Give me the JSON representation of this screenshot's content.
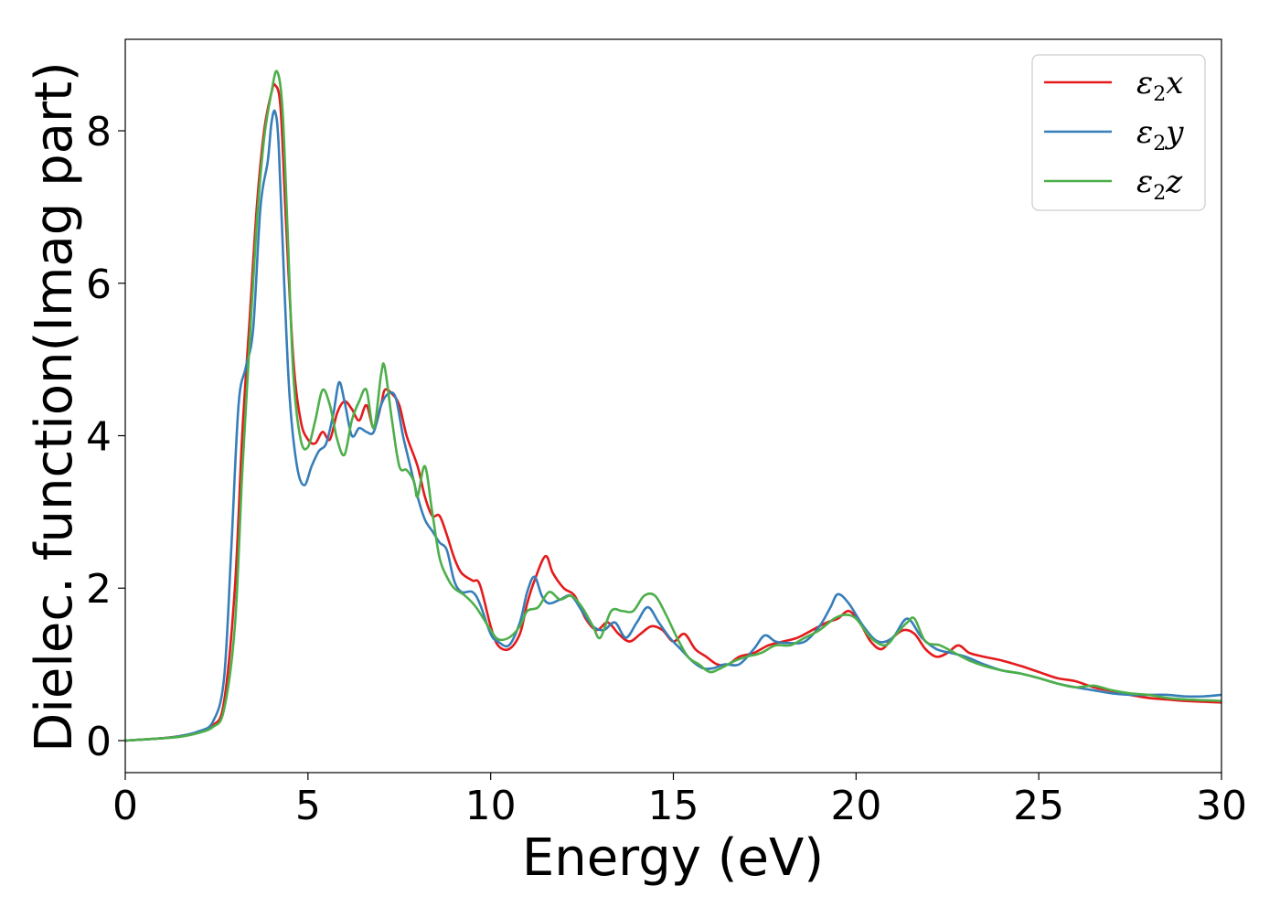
{
  "chart_data": {
    "type": "line",
    "title": "",
    "xlabel": "Energy (eV)",
    "ylabel": "Dielec. function(Imag part)",
    "xlim": [
      0,
      30
    ],
    "ylim": [
      -0.42,
      9.2
    ],
    "xticks": [
      0,
      5,
      10,
      15,
      20,
      25,
      30
    ],
    "yticks": [
      0,
      2,
      4,
      6,
      8
    ],
    "grid": false,
    "legend_position": "top-right",
    "series": [
      {
        "name": "ε2x",
        "legend": {
          "base": "ε",
          "sub": "2",
          "var": "x"
        },
        "color": "#e41a1c",
        "points": [
          [
            0,
            0
          ],
          [
            1,
            0.03
          ],
          [
            1.5,
            0.06
          ],
          [
            2,
            0.11
          ],
          [
            2.4,
            0.2
          ],
          [
            2.7,
            0.5
          ],
          [
            3.0,
            2.0
          ],
          [
            3.2,
            4.0
          ],
          [
            3.4,
            5.5
          ],
          [
            3.6,
            7.0
          ],
          [
            3.8,
            8.0
          ],
          [
            4.0,
            8.5
          ],
          [
            4.1,
            8.6
          ],
          [
            4.25,
            8.3
          ],
          [
            4.4,
            6.8
          ],
          [
            4.6,
            5.0
          ],
          [
            4.8,
            4.2
          ],
          [
            5.0,
            3.95
          ],
          [
            5.2,
            3.9
          ],
          [
            5.4,
            4.05
          ],
          [
            5.6,
            3.95
          ],
          [
            5.8,
            4.3
          ],
          [
            6.0,
            4.45
          ],
          [
            6.2,
            4.35
          ],
          [
            6.4,
            4.2
          ],
          [
            6.6,
            4.4
          ],
          [
            6.8,
            4.1
          ],
          [
            7.0,
            4.4
          ],
          [
            7.1,
            4.6
          ],
          [
            7.3,
            4.55
          ],
          [
            7.5,
            4.4
          ],
          [
            7.7,
            4.0
          ],
          [
            8.0,
            3.6
          ],
          [
            8.2,
            3.2
          ],
          [
            8.4,
            2.95
          ],
          [
            8.6,
            2.95
          ],
          [
            8.8,
            2.7
          ],
          [
            9.0,
            2.4
          ],
          [
            9.2,
            2.2
          ],
          [
            9.5,
            2.1
          ],
          [
            9.7,
            2.05
          ],
          [
            10.0,
            1.5
          ],
          [
            10.2,
            1.25
          ],
          [
            10.5,
            1.2
          ],
          [
            10.8,
            1.4
          ],
          [
            11.0,
            1.8
          ],
          [
            11.2,
            2.1
          ],
          [
            11.5,
            2.42
          ],
          [
            11.7,
            2.2
          ],
          [
            12.0,
            2.0
          ],
          [
            12.3,
            1.9
          ],
          [
            12.6,
            1.6
          ],
          [
            12.9,
            1.45
          ],
          [
            13.2,
            1.55
          ],
          [
            13.5,
            1.4
          ],
          [
            13.8,
            1.3
          ],
          [
            14.1,
            1.4
          ],
          [
            14.4,
            1.5
          ],
          [
            14.7,
            1.45
          ],
          [
            15.0,
            1.3
          ],
          [
            15.3,
            1.4
          ],
          [
            15.6,
            1.2
          ],
          [
            15.9,
            1.1
          ],
          [
            16.2,
            1.0
          ],
          [
            16.5,
            1.0
          ],
          [
            16.8,
            1.1
          ],
          [
            17.2,
            1.15
          ],
          [
            17.6,
            1.25
          ],
          [
            18.0,
            1.3
          ],
          [
            18.4,
            1.35
          ],
          [
            18.8,
            1.45
          ],
          [
            19.2,
            1.55
          ],
          [
            19.5,
            1.6
          ],
          [
            19.8,
            1.7
          ],
          [
            20.1,
            1.55
          ],
          [
            20.4,
            1.3
          ],
          [
            20.7,
            1.2
          ],
          [
            21.0,
            1.35
          ],
          [
            21.3,
            1.45
          ],
          [
            21.6,
            1.4
          ],
          [
            21.9,
            1.2
          ],
          [
            22.2,
            1.1
          ],
          [
            22.5,
            1.15
          ],
          [
            22.8,
            1.25
          ],
          [
            23.1,
            1.15
          ],
          [
            23.5,
            1.1
          ],
          [
            24.0,
            1.05
          ],
          [
            24.5,
            0.98
          ],
          [
            25.0,
            0.9
          ],
          [
            25.5,
            0.82
          ],
          [
            26.0,
            0.78
          ],
          [
            26.5,
            0.7
          ],
          [
            27.0,
            0.65
          ],
          [
            27.5,
            0.6
          ],
          [
            28.0,
            0.56
          ],
          [
            28.5,
            0.54
          ],
          [
            29.0,
            0.52
          ],
          [
            29.5,
            0.51
          ],
          [
            30.0,
            0.5
          ]
        ]
      },
      {
        "name": "ε2y",
        "legend": {
          "base": "ε",
          "sub": "2",
          "var": "y"
        },
        "color": "#377eb8",
        "points": [
          [
            0,
            0
          ],
          [
            1,
            0.03
          ],
          [
            1.5,
            0.06
          ],
          [
            2,
            0.12
          ],
          [
            2.4,
            0.25
          ],
          [
            2.7,
            0.8
          ],
          [
            2.9,
            2.5
          ],
          [
            3.1,
            4.4
          ],
          [
            3.3,
            4.9
          ],
          [
            3.5,
            5.4
          ],
          [
            3.7,
            7.0
          ],
          [
            3.9,
            7.6
          ],
          [
            4.0,
            8.1
          ],
          [
            4.1,
            8.25
          ],
          [
            4.2,
            7.8
          ],
          [
            4.35,
            6.0
          ],
          [
            4.5,
            4.5
          ],
          [
            4.7,
            3.6
          ],
          [
            4.9,
            3.35
          ],
          [
            5.1,
            3.6
          ],
          [
            5.3,
            3.8
          ],
          [
            5.5,
            3.9
          ],
          [
            5.7,
            4.3
          ],
          [
            5.85,
            4.7
          ],
          [
            6.0,
            4.45
          ],
          [
            6.2,
            4.0
          ],
          [
            6.4,
            4.1
          ],
          [
            6.6,
            4.05
          ],
          [
            6.8,
            4.05
          ],
          [
            7.0,
            4.4
          ],
          [
            7.2,
            4.55
          ],
          [
            7.4,
            4.5
          ],
          [
            7.6,
            4.0
          ],
          [
            7.8,
            3.6
          ],
          [
            8.0,
            3.2
          ],
          [
            8.2,
            2.9
          ],
          [
            8.4,
            2.75
          ],
          [
            8.6,
            2.6
          ],
          [
            8.8,
            2.5
          ],
          [
            9.0,
            2.1
          ],
          [
            9.2,
            1.95
          ],
          [
            9.5,
            1.95
          ],
          [
            9.7,
            1.8
          ],
          [
            10.0,
            1.4
          ],
          [
            10.2,
            1.3
          ],
          [
            10.5,
            1.25
          ],
          [
            10.8,
            1.55
          ],
          [
            11.0,
            1.95
          ],
          [
            11.2,
            2.15
          ],
          [
            11.4,
            1.9
          ],
          [
            11.6,
            1.8
          ],
          [
            11.9,
            1.85
          ],
          [
            12.2,
            1.9
          ],
          [
            12.5,
            1.7
          ],
          [
            12.8,
            1.5
          ],
          [
            13.1,
            1.45
          ],
          [
            13.4,
            1.55
          ],
          [
            13.7,
            1.35
          ],
          [
            14.0,
            1.55
          ],
          [
            14.3,
            1.75
          ],
          [
            14.6,
            1.55
          ],
          [
            14.9,
            1.35
          ],
          [
            15.2,
            1.2
          ],
          [
            15.5,
            1.05
          ],
          [
            15.8,
            0.95
          ],
          [
            16.1,
            0.95
          ],
          [
            16.4,
            1.0
          ],
          [
            16.8,
            1.0
          ],
          [
            17.2,
            1.2
          ],
          [
            17.5,
            1.38
          ],
          [
            17.8,
            1.3
          ],
          [
            18.2,
            1.28
          ],
          [
            18.6,
            1.3
          ],
          [
            19.0,
            1.5
          ],
          [
            19.3,
            1.75
          ],
          [
            19.5,
            1.92
          ],
          [
            19.8,
            1.8
          ],
          [
            20.2,
            1.5
          ],
          [
            20.6,
            1.3
          ],
          [
            21.0,
            1.35
          ],
          [
            21.4,
            1.6
          ],
          [
            21.8,
            1.35
          ],
          [
            22.2,
            1.2
          ],
          [
            22.6,
            1.15
          ],
          [
            23.0,
            1.1
          ],
          [
            23.5,
            1.0
          ],
          [
            24.0,
            0.92
          ],
          [
            24.5,
            0.88
          ],
          [
            25.0,
            0.82
          ],
          [
            25.5,
            0.75
          ],
          [
            26.0,
            0.7
          ],
          [
            26.5,
            0.66
          ],
          [
            27.0,
            0.62
          ],
          [
            27.5,
            0.6
          ],
          [
            28.0,
            0.6
          ],
          [
            28.5,
            0.6
          ],
          [
            29.0,
            0.58
          ],
          [
            29.5,
            0.58
          ],
          [
            30.0,
            0.6
          ]
        ]
      },
      {
        "name": "ε2z",
        "legend": {
          "base": "ε",
          "sub": "2",
          "var": "z"
        },
        "color": "#4daf4a",
        "points": [
          [
            0,
            0
          ],
          [
            1,
            0.03
          ],
          [
            1.5,
            0.05
          ],
          [
            2,
            0.1
          ],
          [
            2.4,
            0.18
          ],
          [
            2.7,
            0.4
          ],
          [
            3.0,
            1.5
          ],
          [
            3.2,
            3.5
          ],
          [
            3.4,
            5.2
          ],
          [
            3.6,
            6.8
          ],
          [
            3.8,
            7.9
          ],
          [
            4.0,
            8.5
          ],
          [
            4.15,
            8.78
          ],
          [
            4.3,
            8.3
          ],
          [
            4.45,
            6.6
          ],
          [
            4.6,
            4.8
          ],
          [
            4.8,
            3.95
          ],
          [
            5.0,
            3.85
          ],
          [
            5.2,
            4.2
          ],
          [
            5.4,
            4.6
          ],
          [
            5.6,
            4.4
          ],
          [
            5.8,
            3.95
          ],
          [
            6.0,
            3.75
          ],
          [
            6.2,
            4.2
          ],
          [
            6.4,
            4.45
          ],
          [
            6.6,
            4.6
          ],
          [
            6.8,
            4.1
          ],
          [
            7.0,
            4.8
          ],
          [
            7.1,
            4.9
          ],
          [
            7.3,
            4.2
          ],
          [
            7.5,
            3.6
          ],
          [
            7.7,
            3.55
          ],
          [
            7.9,
            3.4
          ],
          [
            8.0,
            3.2
          ],
          [
            8.2,
            3.6
          ],
          [
            8.4,
            3.0
          ],
          [
            8.6,
            2.4
          ],
          [
            8.8,
            2.15
          ],
          [
            9.0,
            2.0
          ],
          [
            9.3,
            1.9
          ],
          [
            9.6,
            1.75
          ],
          [
            10.0,
            1.45
          ],
          [
            10.2,
            1.33
          ],
          [
            10.5,
            1.35
          ],
          [
            10.8,
            1.5
          ],
          [
            11.0,
            1.7
          ],
          [
            11.3,
            1.75
          ],
          [
            11.6,
            1.95
          ],
          [
            11.9,
            1.85
          ],
          [
            12.2,
            1.9
          ],
          [
            12.5,
            1.75
          ],
          [
            12.8,
            1.5
          ],
          [
            13.0,
            1.35
          ],
          [
            13.3,
            1.7
          ],
          [
            13.6,
            1.7
          ],
          [
            13.9,
            1.7
          ],
          [
            14.2,
            1.9
          ],
          [
            14.5,
            1.9
          ],
          [
            14.8,
            1.65
          ],
          [
            15.1,
            1.35
          ],
          [
            15.4,
            1.1
          ],
          [
            15.7,
            1.0
          ],
          [
            16.0,
            0.9
          ],
          [
            16.3,
            0.95
          ],
          [
            16.7,
            1.05
          ],
          [
            17.0,
            1.1
          ],
          [
            17.4,
            1.15
          ],
          [
            17.8,
            1.25
          ],
          [
            18.2,
            1.25
          ],
          [
            18.6,
            1.35
          ],
          [
            19.0,
            1.45
          ],
          [
            19.4,
            1.6
          ],
          [
            19.7,
            1.65
          ],
          [
            20.0,
            1.6
          ],
          [
            20.4,
            1.35
          ],
          [
            20.8,
            1.25
          ],
          [
            21.1,
            1.4
          ],
          [
            21.4,
            1.55
          ],
          [
            21.6,
            1.6
          ],
          [
            21.9,
            1.3
          ],
          [
            22.3,
            1.25
          ],
          [
            22.7,
            1.15
          ],
          [
            23.1,
            1.05
          ],
          [
            23.5,
            0.98
          ],
          [
            24.0,
            0.92
          ],
          [
            24.5,
            0.88
          ],
          [
            25.0,
            0.82
          ],
          [
            25.5,
            0.75
          ],
          [
            26.0,
            0.7
          ],
          [
            26.5,
            0.72
          ],
          [
            27.0,
            0.66
          ],
          [
            27.5,
            0.62
          ],
          [
            28.0,
            0.6
          ],
          [
            28.5,
            0.56
          ],
          [
            29.0,
            0.54
          ],
          [
            29.5,
            0.53
          ],
          [
            30.0,
            0.52
          ]
        ]
      }
    ]
  }
}
